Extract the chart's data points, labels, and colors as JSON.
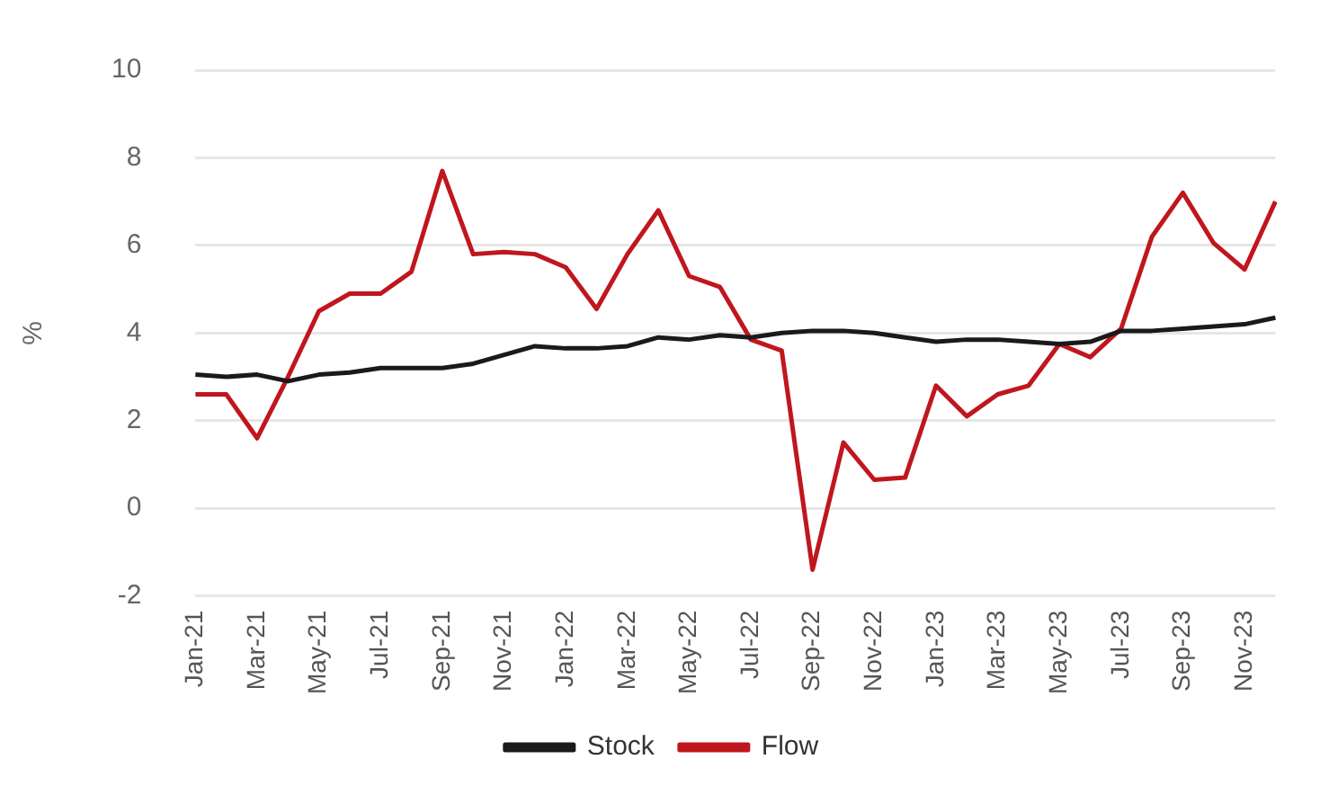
{
  "chart_data": {
    "type": "line",
    "ylabel": "%",
    "categories": [
      "Jan-21",
      null,
      "Mar-21",
      null,
      "May-21",
      null,
      "Jul-21",
      null,
      "Sep-21",
      null,
      "Nov-21",
      null,
      "Jan-22",
      null,
      "Mar-22",
      null,
      "May-22",
      null,
      "Jul-22",
      null,
      "Sep-22",
      null,
      "Nov-22",
      null,
      "Jan-23",
      null,
      "Mar-23",
      null,
      "May-23",
      null,
      "Jul-23",
      null,
      "Sep-23",
      null,
      "Nov-23",
      null
    ],
    "series": [
      {
        "name": "Stock",
        "color": "#1a1a1a",
        "values": [
          3.05,
          3.0,
          3.05,
          2.9,
          3.05,
          3.1,
          3.2,
          3.2,
          3.2,
          3.3,
          3.5,
          3.7,
          3.65,
          3.65,
          3.7,
          3.9,
          3.85,
          3.95,
          3.9,
          4.0,
          4.05,
          4.05,
          4.0,
          3.9,
          3.8,
          3.85,
          3.85,
          3.8,
          3.75,
          3.8,
          4.05,
          4.05,
          4.1,
          4.15,
          4.2,
          4.35
        ]
      },
      {
        "name": "Flow",
        "color": "#c0161e",
        "values": [
          2.6,
          2.6,
          1.6,
          3.0,
          4.5,
          4.9,
          4.9,
          5.4,
          7.7,
          5.8,
          5.85,
          5.8,
          5.5,
          4.55,
          5.8,
          6.8,
          5.3,
          5.05,
          3.85,
          3.6,
          -1.4,
          1.5,
          0.65,
          0.7,
          2.8,
          2.1,
          2.6,
          2.8,
          3.75,
          3.45,
          4.1,
          6.2,
          7.2,
          6.05,
          5.45,
          7.0
        ]
      }
    ],
    "ylim": [
      -2,
      10
    ],
    "yticks": [
      -2,
      0,
      2,
      4,
      6,
      8,
      10
    ],
    "grid": "y",
    "legend": "bottom",
    "marker": "none",
    "line_style": "solid"
  }
}
